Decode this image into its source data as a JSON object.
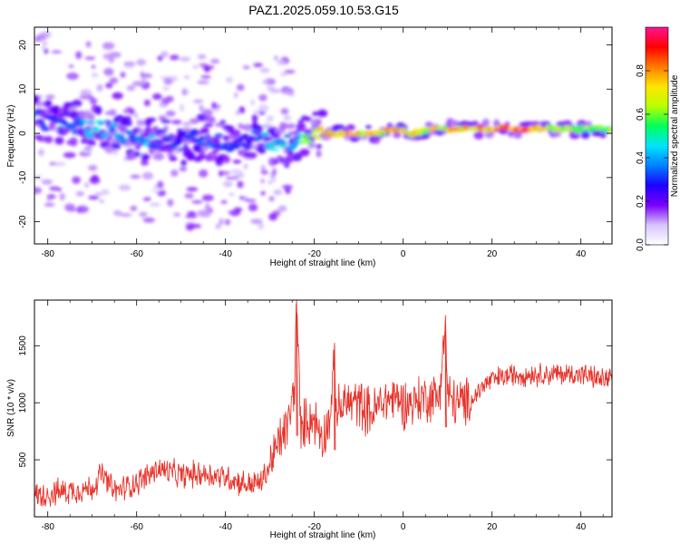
{
  "figure": {
    "title": "PAZ1.2025.059.10.53.G15"
  },
  "chart_data": [
    {
      "type": "heatmap",
      "xlabel": "Height of straight line (km)",
      "ylabel": "Frequency (Hz)",
      "xlim": [
        -83,
        47
      ],
      "ylim": [
        -25,
        24
      ],
      "x_ticks": [
        -80,
        -60,
        -40,
        -20,
        0,
        20,
        40
      ],
      "y_ticks": [
        -20,
        -10,
        0,
        10,
        20
      ],
      "colorbar": {
        "label": "Normalized spectral amplitude",
        "range": [
          0,
          1
        ],
        "ticks": [
          0.0,
          0.2,
          0.4,
          0.6,
          0.8
        ],
        "tick_labels": [
          "0.0",
          "0.2",
          "0.4",
          "0.6",
          "0.8"
        ],
        "colormap": [
          "#ffffff",
          "#d7c4ff",
          "#7a00ff",
          "#1d00ff",
          "#0080ff",
          "#00e5ff",
          "#00ff5a",
          "#b8ff00",
          "#ffe600",
          "#ff7a00",
          "#ff0000",
          "#ff1493"
        ]
      },
      "ridge": {
        "x": [
          -82,
          -78,
          -74,
          -70,
          -66,
          -62,
          -58,
          -54,
          -50,
          -46,
          -42,
          -38,
          -34,
          -30,
          -26,
          -22,
          -18,
          -14,
          -10,
          -6,
          -2,
          2,
          6,
          10,
          14,
          18,
          22,
          26,
          30,
          34,
          38,
          42,
          46
        ],
        "frequency": [
          3,
          2,
          2,
          1,
          1,
          -1,
          -2,
          -1,
          -2,
          -1,
          -2,
          -3,
          -1,
          -2,
          -2,
          -1,
          0,
          0,
          0,
          0,
          1,
          0,
          1,
          1,
          1,
          1,
          1,
          1,
          1,
          1,
          1,
          1,
          1
        ],
        "amplitude": [
          0.3,
          0.3,
          0.4,
          0.45,
          0.4,
          0.35,
          0.4,
          0.35,
          0.3,
          0.3,
          0.35,
          0.3,
          0.3,
          0.45,
          0.45,
          0.55,
          0.75,
          0.8,
          0.85,
          0.7,
          0.8,
          0.7,
          0.75,
          0.8,
          0.8,
          0.85,
          0.9,
          0.9,
          0.85,
          0.75,
          0.7,
          0.65,
          0.6
        ]
      }
    },
    {
      "type": "line",
      "xlabel": "Height of straight line (km)",
      "ylabel": "SNR (10 * v/v)",
      "xlim": [
        -83,
        47
      ],
      "ylim": [
        0,
        1900
      ],
      "x_ticks": [
        -80,
        -60,
        -40,
        -20,
        0,
        20,
        40
      ],
      "y_ticks": [
        500,
        1000,
        1500
      ],
      "color": "#e8332a",
      "series": [
        {
          "x": [
            -83,
            -80,
            -75,
            -70,
            -68,
            -65,
            -60,
            -55,
            -50,
            -45,
            -40,
            -35,
            -32,
            -30,
            -28,
            -26,
            -24.5,
            -24,
            -23,
            -22,
            -20,
            -18,
            -16,
            -15.5,
            -15,
            -13,
            -10,
            -7,
            -5,
            -2,
            0,
            2,
            5,
            8,
            9.5,
            10,
            12,
            15,
            18,
            20,
            25,
            30,
            35,
            40,
            45,
            47
          ],
          "y": [
            180,
            200,
            230,
            250,
            380,
            220,
            300,
            420,
            360,
            380,
            350,
            280,
            300,
            450,
            650,
            800,
            1100,
            1900,
            700,
            850,
            850,
            700,
            950,
            1500,
            900,
            1000,
            1000,
            900,
            1000,
            1050,
            1000,
            1000,
            1050,
            1050,
            1700,
            1050,
            1000,
            1000,
            1150,
            1200,
            1250,
            1250,
            1250,
            1250,
            1200,
            1220
          ]
        }
      ]
    }
  ]
}
